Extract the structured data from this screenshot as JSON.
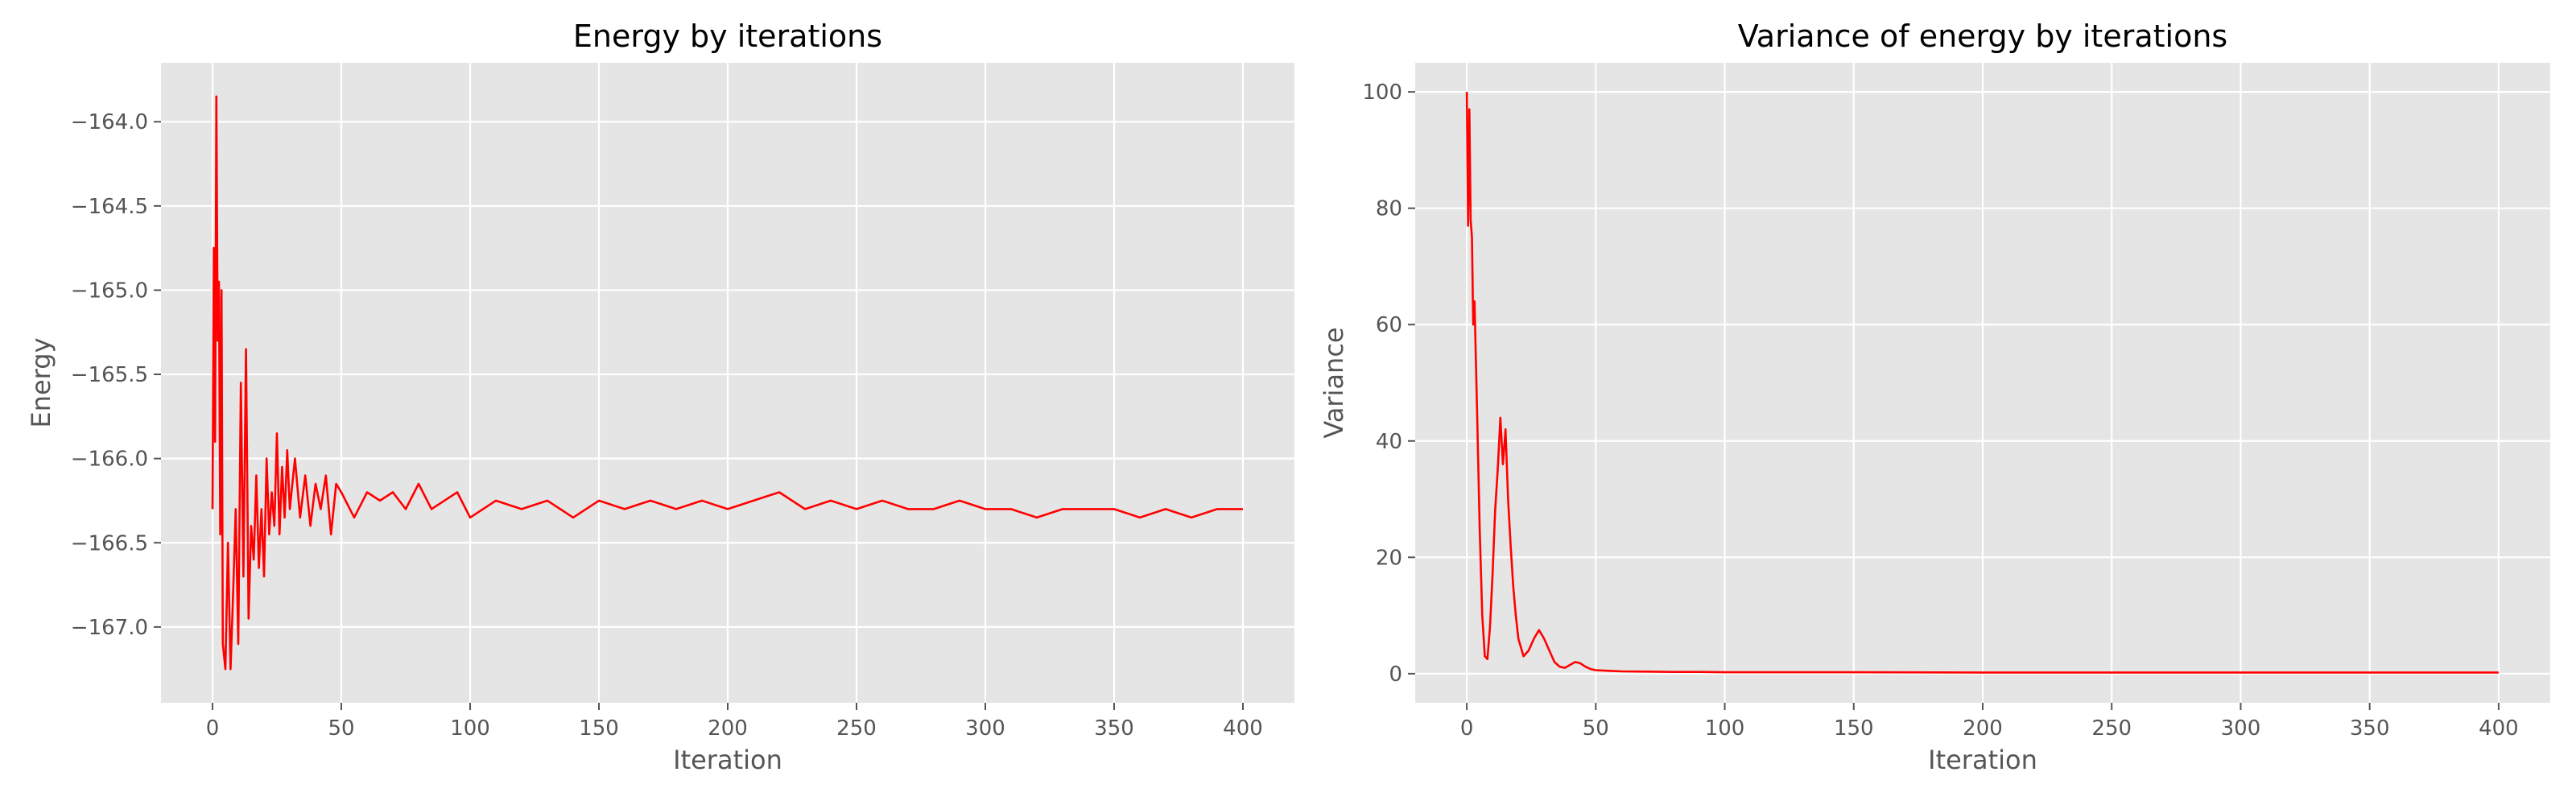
{
  "chart_data": [
    {
      "type": "line",
      "title": "Energy by iterations",
      "xlabel": "Iteration",
      "ylabel": "Energy",
      "xlim": [
        -20,
        420
      ],
      "ylim": [
        -167.45,
        -163.65
      ],
      "xticks": [
        0,
        50,
        100,
        150,
        200,
        250,
        300,
        350,
        400
      ],
      "yticks": [
        -167.0,
        -166.5,
        -166.0,
        -165.5,
        -165.0,
        -164.5,
        -164.0
      ],
      "ytick_labels": [
        "−167.0",
        "−166.5",
        "−166.0",
        "−165.5",
        "−165.0",
        "−164.5",
        "−164.0"
      ],
      "grid": true,
      "series": [
        {
          "color": "#ff0000",
          "x": [
            0,
            0.5,
            1,
            1.5,
            2,
            2.5,
            3,
            3.5,
            4,
            5,
            6,
            7,
            8,
            9,
            10,
            11,
            12,
            13,
            14,
            15,
            16,
            17,
            18,
            19,
            20,
            21,
            22,
            23,
            24,
            25,
            26,
            27,
            28,
            29,
            30,
            32,
            34,
            36,
            38,
            40,
            42,
            44,
            46,
            48,
            50,
            55,
            60,
            65,
            70,
            75,
            80,
            85,
            90,
            95,
            100,
            110,
            120,
            130,
            140,
            150,
            160,
            170,
            180,
            190,
            200,
            210,
            220,
            230,
            240,
            250,
            260,
            270,
            280,
            290,
            300,
            310,
            320,
            330,
            340,
            350,
            360,
            370,
            380,
            390,
            400
          ],
          "y": [
            -166.3,
            -164.75,
            -165.9,
            -163.85,
            -165.3,
            -164.95,
            -166.45,
            -165.0,
            -167.1,
            -167.25,
            -166.5,
            -167.25,
            -166.8,
            -166.3,
            -167.1,
            -165.55,
            -166.7,
            -165.35,
            -166.95,
            -166.4,
            -166.6,
            -166.1,
            -166.65,
            -166.3,
            -166.7,
            -166.0,
            -166.45,
            -166.2,
            -166.4,
            -165.85,
            -166.45,
            -166.05,
            -166.35,
            -165.95,
            -166.3,
            -166.0,
            -166.35,
            -166.1,
            -166.4,
            -166.15,
            -166.3,
            -166.1,
            -166.45,
            -166.15,
            -166.2,
            -166.35,
            -166.2,
            -166.25,
            -166.2,
            -166.3,
            -166.15,
            -166.3,
            -166.25,
            -166.2,
            -166.35,
            -166.25,
            -166.3,
            -166.25,
            -166.35,
            -166.25,
            -166.3,
            -166.25,
            -166.3,
            -166.25,
            -166.3,
            -166.25,
            -166.2,
            -166.3,
            -166.25,
            -166.3,
            -166.25,
            -166.3,
            -166.3,
            -166.25,
            -166.3,
            -166.3,
            -166.35,
            -166.3,
            -166.3,
            -166.3,
            -166.35,
            -166.3,
            -166.35,
            -166.3,
            -166.3
          ]
        }
      ]
    },
    {
      "type": "line",
      "title": "Variance of energy by iterations",
      "xlabel": "Iteration",
      "ylabel": "Variance",
      "xlim": [
        -20,
        420
      ],
      "ylim": [
        -5,
        105
      ],
      "xticks": [
        0,
        50,
        100,
        150,
        200,
        250,
        300,
        350,
        400
      ],
      "yticks": [
        0,
        20,
        40,
        60,
        80,
        100
      ],
      "ytick_labels": [
        "0",
        "20",
        "40",
        "60",
        "80",
        "100"
      ],
      "grid": true,
      "series": [
        {
          "color": "#ff0000",
          "x": [
            0,
            0.5,
            1,
            1.5,
            2,
            2.5,
            3,
            4,
            5,
            6,
            7,
            8,
            9,
            10,
            11,
            12,
            13,
            14,
            15,
            16,
            17,
            18,
            19,
            20,
            22,
            24,
            26,
            28,
            30,
            32,
            34,
            36,
            38,
            40,
            42,
            44,
            46,
            48,
            50,
            55,
            60,
            70,
            80,
            90,
            100,
            150,
            200,
            250,
            300,
            350,
            400
          ],
          "y": [
            100,
            77,
            97,
            78,
            75,
            60,
            64,
            45,
            25,
            10,
            3,
            2.5,
            8,
            17,
            28,
            35,
            44,
            36,
            42,
            30,
            22,
            15,
            10,
            6,
            3,
            4,
            6,
            7.5,
            6,
            4,
            2,
            1.2,
            1.0,
            1.5,
            2.0,
            1.8,
            1.2,
            0.8,
            0.6,
            0.5,
            0.4,
            0.35,
            0.3,
            0.3,
            0.25,
            0.25,
            0.2,
            0.2,
            0.2,
            0.2,
            0.2
          ]
        }
      ]
    }
  ]
}
